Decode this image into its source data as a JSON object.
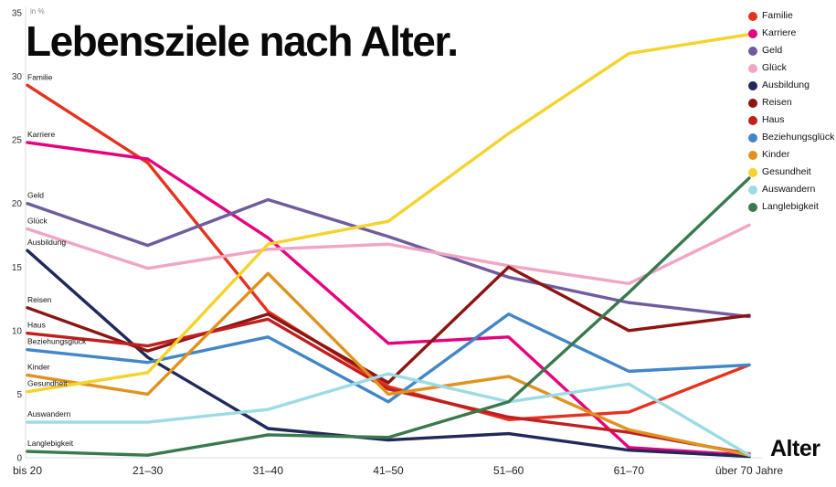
{
  "chart_data": {
    "type": "line",
    "title": "Lebensziele nach Alter.",
    "y_unit_label": "in %",
    "xlabel": "Alter",
    "ylabel": "in %",
    "ylim": [
      0,
      35
    ],
    "y_ticks": [
      0,
      5,
      10,
      15,
      20,
      25,
      30,
      35
    ],
    "grid": false,
    "legend_position": "top-right",
    "categories": [
      "bis 20",
      "21–30",
      "31–40",
      "41–50",
      "51–60",
      "61–70",
      "über 70 Jahre"
    ],
    "series": [
      {
        "name": "Familie",
        "color": "#e5321e",
        "values": [
          29.3,
          23.2,
          11.5,
          5.6,
          3.0,
          3.6,
          7.3
        ]
      },
      {
        "name": "Karriere",
        "color": "#e6007e",
        "values": [
          24.8,
          23.5,
          17.3,
          9.0,
          9.5,
          0.8,
          0.2
        ]
      },
      {
        "name": "Geld",
        "color": "#6f5b9e",
        "values": [
          20.0,
          16.7,
          20.3,
          17.4,
          14.2,
          12.2,
          11.1
        ]
      },
      {
        "name": "Glück",
        "color": "#f0a5c5",
        "values": [
          18.0,
          14.9,
          16.4,
          16.8,
          15.1,
          13.7,
          18.3
        ]
      },
      {
        "name": "Ausbildung",
        "color": "#20295a",
        "values": [
          16.3,
          7.9,
          2.3,
          1.4,
          1.9,
          0.6,
          0.1
        ]
      },
      {
        "name": "Reisen",
        "color": "#8c1512",
        "values": [
          11.8,
          8.4,
          11.3,
          5.9,
          15.0,
          10.0,
          11.2
        ]
      },
      {
        "name": "Haus",
        "color": "#c01f1f",
        "values": [
          9.8,
          8.8,
          10.9,
          5.4,
          3.2,
          2.0,
          0.3
        ]
      },
      {
        "name": "Beziehungsglück",
        "color": "#4286c8",
        "values": [
          8.5,
          7.5,
          9.5,
          4.4,
          11.3,
          6.8,
          7.3
        ]
      },
      {
        "name": "Kinder",
        "color": "#e0921f",
        "values": [
          6.5,
          5.0,
          14.5,
          5.0,
          6.4,
          2.2,
          0.2
        ]
      },
      {
        "name": "Gesundheit",
        "color": "#f6d32b",
        "values": [
          5.2,
          6.7,
          16.8,
          18.6,
          25.5,
          31.8,
          33.3
        ]
      },
      {
        "name": "Auswandern",
        "color": "#9ddbe4",
        "values": [
          2.8,
          2.8,
          3.8,
          6.6,
          4.4,
          5.8,
          0.2
        ]
      },
      {
        "name": "Langlebigkeit",
        "color": "#39794e",
        "values": [
          0.5,
          0.2,
          1.8,
          1.6,
          4.4,
          13.0,
          22.0
        ]
      }
    ]
  }
}
